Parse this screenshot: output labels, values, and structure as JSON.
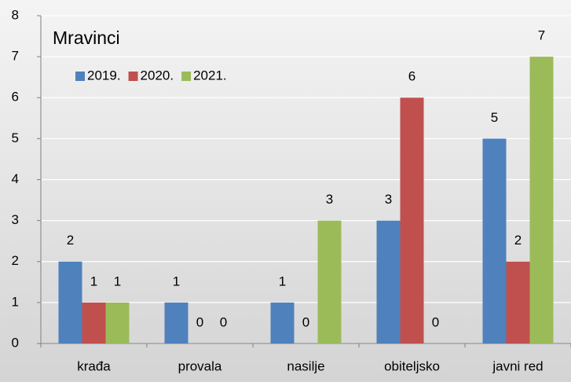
{
  "chart_data": {
    "type": "bar",
    "title": "Mravinci",
    "categories": [
      "krađa",
      "provala",
      "nasilje",
      "obiteljsko",
      "javni red"
    ],
    "series": [
      {
        "name": "2019.",
        "color": "#4f81bd",
        "values": [
          2,
          1,
          1,
          3,
          5
        ]
      },
      {
        "name": "2020.",
        "color": "#c0504d",
        "values": [
          1,
          0,
          0,
          6,
          2
        ]
      },
      {
        "name": "2021.",
        "color": "#9bbb59",
        "values": [
          1,
          0,
          3,
          0,
          7
        ]
      }
    ],
    "ylim": [
      0,
      8
    ],
    "yticks": [
      0,
      1,
      2,
      3,
      4,
      5,
      6,
      7,
      8
    ],
    "grid": true,
    "legend": "top-left"
  }
}
